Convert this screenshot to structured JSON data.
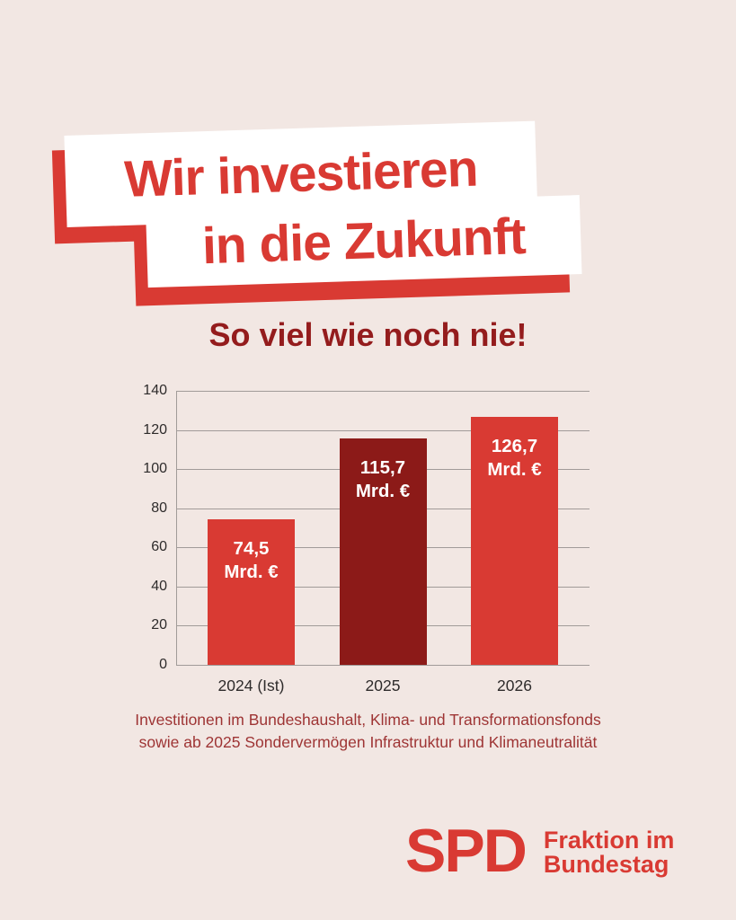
{
  "page": {
    "background": "#f2e7e3"
  },
  "headline": {
    "line1": "Wir investieren",
    "line2": "in die Zukunft",
    "text_color": "#d93a33",
    "box_color": "#ffffff",
    "shadow_color": "#d93a33"
  },
  "subtitle": {
    "text": "So viel wie noch nie!",
    "color": "#941c1d"
  },
  "chart_data": {
    "type": "bar",
    "title": "",
    "categories": [
      "2024 (Ist)",
      "2025",
      "2026"
    ],
    "values": [
      74.5,
      115.7,
      126.7
    ],
    "bar_labels": [
      [
        "74,5",
        "Mrd. €"
      ],
      [
        "115,7",
        "Mrd. €"
      ],
      [
        "126,7",
        "Mrd. €"
      ]
    ],
    "bar_colors": [
      "#d93a33",
      "#8c1a18",
      "#d93a33"
    ],
    "ylim": [
      0,
      140
    ],
    "yticks": [
      0,
      20,
      40,
      60,
      80,
      100,
      120,
      140
    ],
    "grid": true,
    "gridline_color": "#a19b99",
    "axis_label_color": "#2e2b2b",
    "value_label_color": "#ffffff",
    "legend": "none"
  },
  "caption": {
    "line1": "Investitionen im Bundeshaushalt, Klima- und Transformationsfonds",
    "line2": "sowie ab 2025 Sondervermögen Infrastruktur und Klimaneutralität",
    "color": "#9e3434"
  },
  "logo": {
    "wordmark": "SPD",
    "line1": "Fraktion im",
    "line2": "Bundestag",
    "color": "#d93a33"
  }
}
